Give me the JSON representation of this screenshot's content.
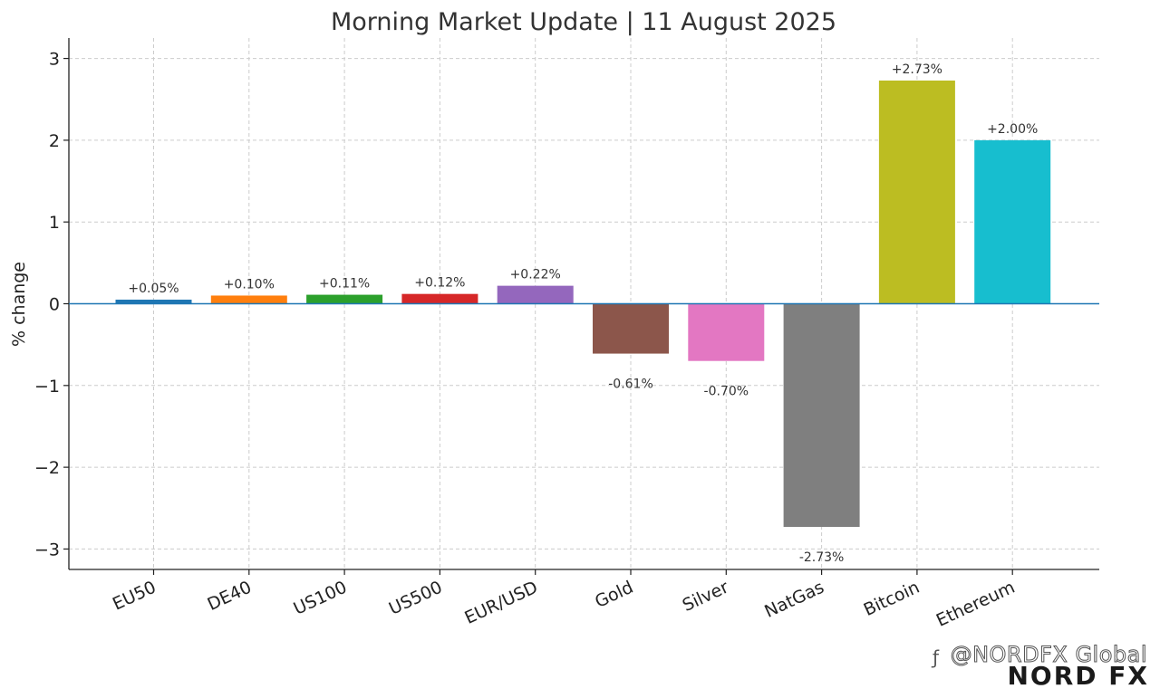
{
  "chart_data": {
    "type": "bar",
    "title": "Morning Market Update | 11 August 2025",
    "xlabel": "",
    "ylabel": "% change",
    "ylim": [
      -3.25,
      3.25
    ],
    "yticks": [
      3,
      2,
      1,
      0,
      -1,
      -2,
      -3
    ],
    "ytick_labels": [
      "3",
      "2",
      "1",
      "0",
      "−1",
      "−2",
      "−3"
    ],
    "grid": true,
    "categories": [
      "EU50",
      "DE40",
      "US100",
      "US500",
      "EUR/USD",
      "Gold",
      "Silver",
      "NatGas",
      "Bitcoin",
      "Ethereum"
    ],
    "values": [
      0.05,
      0.1,
      0.11,
      0.12,
      0.22,
      -0.61,
      -0.7,
      -2.73,
      2.73,
      2.0
    ],
    "data_labels": [
      "+0.05%",
      "+0.10%",
      "+0.11%",
      "+0.12%",
      "+0.22%",
      "-0.61%",
      "-0.70%",
      "-2.73%",
      "+2.73%",
      "+2.00%"
    ],
    "colors": [
      "#1f77b4",
      "#ff7f0e",
      "#2ca02c",
      "#d62728",
      "#9467bd",
      "#8c564b",
      "#e377c2",
      "#7f7f7f",
      "#bcbd22",
      "#17becf"
    ],
    "zero_line_color": "#1f77b4"
  },
  "watermark": {
    "handle": "@NORDFX Global",
    "logo": "NORD FX"
  }
}
